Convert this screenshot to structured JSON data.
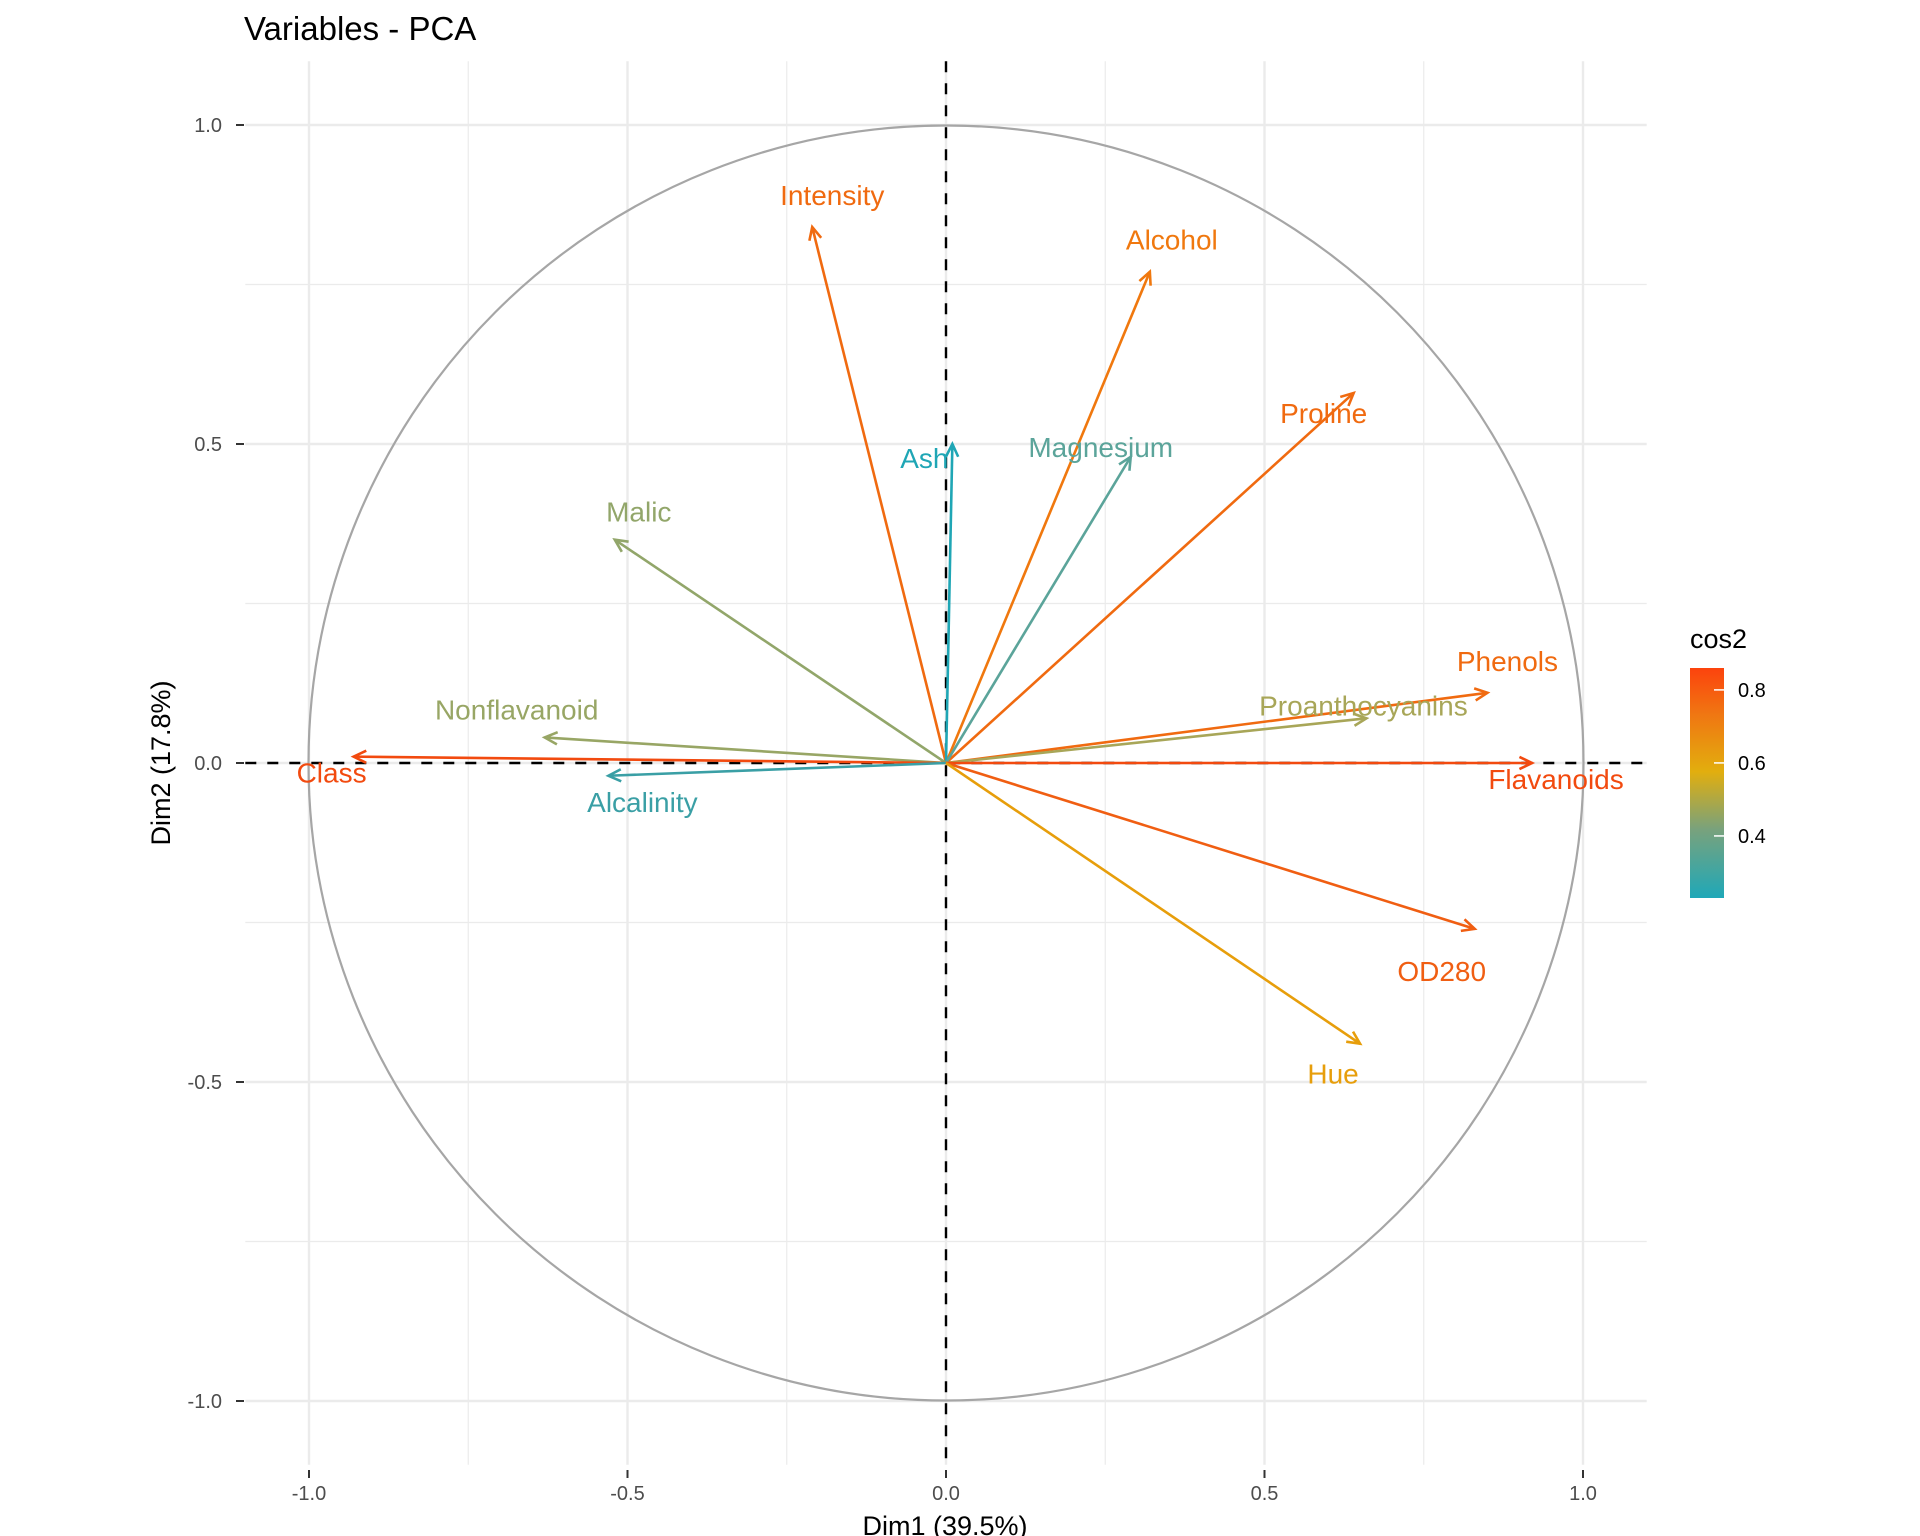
{
  "chart_data": {
    "type": "scatter",
    "subtype": "pca-variable-correlation-circle",
    "title": "Variables - PCA",
    "xlabel": "Dim1 (39.5%)",
    "ylabel": "Dim2 (17.8%)",
    "xlim": [
      -1.1,
      1.1
    ],
    "ylim": [
      -1.1,
      1.1
    ],
    "xticks": [
      "-1.0",
      "-0.5",
      "0.0",
      "0.5",
      "1.0"
    ],
    "yticks": [
      "1.0",
      "0.5",
      "0.0",
      "-0.5",
      "-1.0"
    ],
    "grid": true,
    "legend": {
      "title": "cos2",
      "placement": "right",
      "range": [
        0.23,
        0.86
      ],
      "ticks": [
        "0.8",
        "0.6",
        "0.4"
      ],
      "colors": [
        "#00AFBB",
        "#E7B800",
        "#FC4E07"
      ]
    },
    "variables": [
      {
        "name": "Intensity",
        "x": -0.21,
        "y": 0.84,
        "cos2": 0.74,
        "color": "#F06A10"
      },
      {
        "name": "Alcohol",
        "x": 0.32,
        "y": 0.77,
        "cos2": 0.7,
        "color": "#F0780E"
      },
      {
        "name": "Proline",
        "x": 0.64,
        "y": 0.58,
        "cos2": 0.75,
        "color": "#F06A10"
      },
      {
        "name": "Ash",
        "x": 0.01,
        "y": 0.5,
        "cos2": 0.25,
        "color": "#1FA6B5"
      },
      {
        "name": "Magnesium",
        "x": 0.29,
        "y": 0.48,
        "cos2": 0.31,
        "color": "#5BA49A"
      },
      {
        "name": "Malic",
        "x": -0.52,
        "y": 0.35,
        "cos2": 0.39,
        "color": "#92A66A"
      },
      {
        "name": "Nonflavanoid",
        "x": -0.63,
        "y": 0.04,
        "cos2": 0.4,
        "color": "#98A665"
      },
      {
        "name": "Class",
        "x": -0.93,
        "y": 0.01,
        "cos2": 0.86,
        "color": "#F24A0F"
      },
      {
        "name": "Alcalinity",
        "x": -0.53,
        "y": -0.02,
        "cos2": 0.28,
        "color": "#3A9FA5"
      },
      {
        "name": "Phenols",
        "x": 0.85,
        "y": 0.11,
        "cos2": 0.73,
        "color": "#F06A10"
      },
      {
        "name": "Proanthocyanins",
        "x": 0.66,
        "y": 0.07,
        "cos2": 0.44,
        "color": "#A8A658"
      },
      {
        "name": "Flavanoids",
        "x": 0.92,
        "y": 0.0,
        "cos2": 0.85,
        "color": "#F24A0F"
      },
      {
        "name": "OD280",
        "x": 0.83,
        "y": -0.26,
        "cos2": 0.76,
        "color": "#F05E12"
      },
      {
        "name": "Hue",
        "x": 0.65,
        "y": -0.44,
        "cos2": 0.62,
        "color": "#E79E0B"
      }
    ]
  }
}
